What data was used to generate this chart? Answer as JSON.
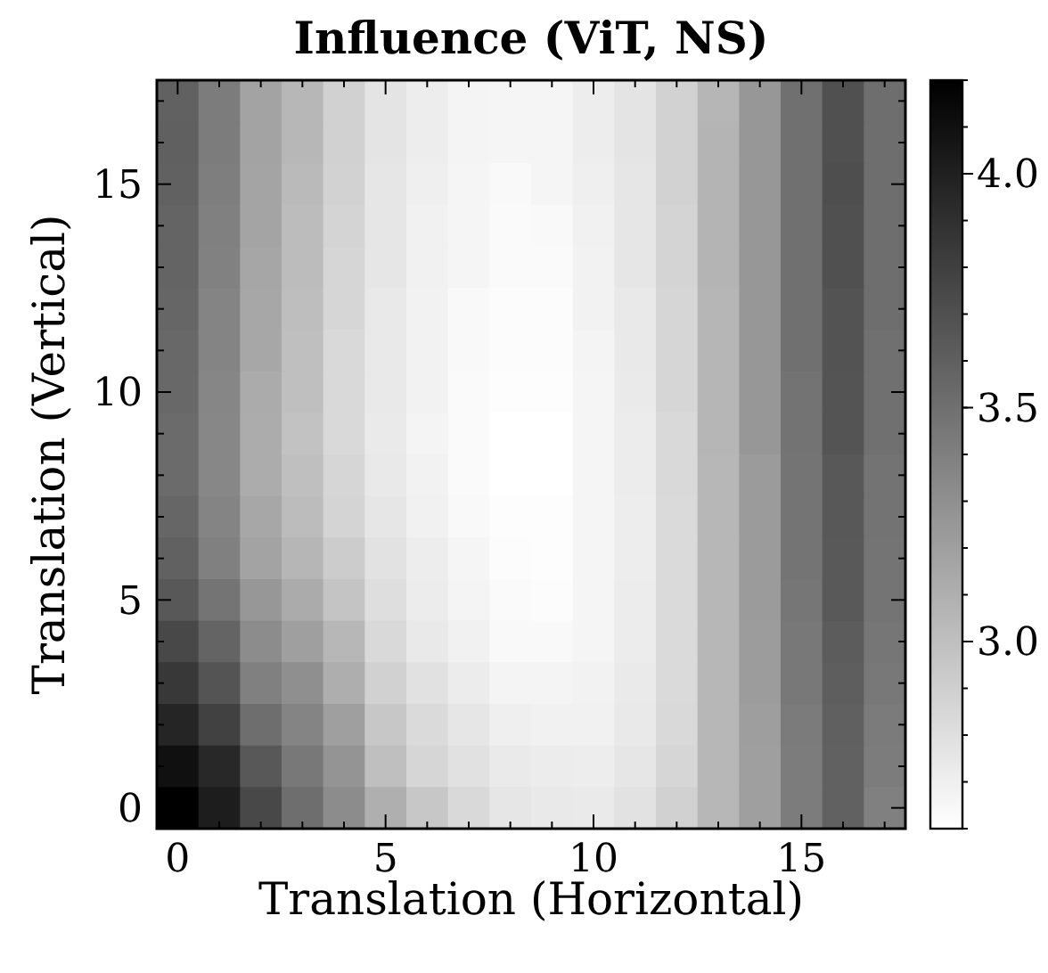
{
  "chart_data": {
    "type": "heatmap",
    "title": "Influence (ViT, NS)",
    "xlabel": "Translation (Horizontal)",
    "ylabel": "Translation (Vertical)",
    "categories": [
      "0",
      null,
      null,
      null,
      null,
      "5",
      null,
      null,
      null,
      null,
      "10",
      null,
      null,
      null,
      null,
      "15",
      null,
      null
    ],
    "y_categories": [
      null,
      null,
      "15",
      null,
      null,
      null,
      null,
      "10",
      null,
      null,
      null,
      null,
      "5",
      null,
      null,
      null,
      null,
      "0"
    ],
    "clim": [
      2.6,
      4.2
    ],
    "cticks": [
      {
        "value": 3,
        "label": "3.0"
      },
      3.5,
      {
        "value": 4,
        "label": "4.0"
      }
    ],
    "cells": [
      [
        3.59,
        3.42,
        3.18,
        3.05,
        2.89,
        2.77,
        2.71,
        2.67,
        2.66,
        2.66,
        2.71,
        2.77,
        2.88,
        3.06,
        3.25,
        3.5,
        3.7,
        3.51
      ],
      [
        3.6,
        3.42,
        3.18,
        3.05,
        2.89,
        2.77,
        2.71,
        2.67,
        2.66,
        2.66,
        2.71,
        2.77,
        2.88,
        3.07,
        3.25,
        3.5,
        3.7,
        3.51
      ],
      [
        3.59,
        3.41,
        3.17,
        3.03,
        2.88,
        2.76,
        2.7,
        2.66,
        2.64,
        2.66,
        2.7,
        2.76,
        2.88,
        3.07,
        3.25,
        3.5,
        3.71,
        3.51
      ],
      [
        3.57,
        3.4,
        3.17,
        3.02,
        2.87,
        2.76,
        2.69,
        2.66,
        2.63,
        2.64,
        2.69,
        2.76,
        2.87,
        3.07,
        3.25,
        3.5,
        3.7,
        3.51
      ],
      [
        3.57,
        3.39,
        3.16,
        3.02,
        2.86,
        2.76,
        2.69,
        2.66,
        2.63,
        2.63,
        2.68,
        2.76,
        2.87,
        3.07,
        3.25,
        3.5,
        3.7,
        3.51
      ],
      [
        3.56,
        3.37,
        3.15,
        3.01,
        2.86,
        2.74,
        2.68,
        2.64,
        2.62,
        2.62,
        2.68,
        2.74,
        2.86,
        3.06,
        3.25,
        3.5,
        3.68,
        3.51
      ],
      [
        3.55,
        3.37,
        3.15,
        3.0,
        2.84,
        2.74,
        2.68,
        2.64,
        2.62,
        2.62,
        2.67,
        2.74,
        2.86,
        3.06,
        3.25,
        3.5,
        3.68,
        3.5
      ],
      [
        3.55,
        3.36,
        3.13,
        3.0,
        2.84,
        2.74,
        2.68,
        2.63,
        2.61,
        2.61,
        2.66,
        2.73,
        2.86,
        3.06,
        3.25,
        3.48,
        3.67,
        3.5
      ],
      [
        3.53,
        3.35,
        3.12,
        2.98,
        2.84,
        2.73,
        2.67,
        2.63,
        2.6,
        2.6,
        2.66,
        2.72,
        2.84,
        3.06,
        3.25,
        3.48,
        3.67,
        3.5
      ],
      [
        3.53,
        3.35,
        3.12,
        3.0,
        2.86,
        2.74,
        2.68,
        2.63,
        2.6,
        2.6,
        2.66,
        2.72,
        2.84,
        3.05,
        3.23,
        3.47,
        3.65,
        3.48
      ],
      [
        3.56,
        3.37,
        3.15,
        3.02,
        2.87,
        2.76,
        2.69,
        2.64,
        2.61,
        2.61,
        2.66,
        2.71,
        2.83,
        3.05,
        3.23,
        3.47,
        3.65,
        3.48
      ],
      [
        3.59,
        3.4,
        3.18,
        3.06,
        2.92,
        2.78,
        2.71,
        2.66,
        2.62,
        2.61,
        2.66,
        2.71,
        2.83,
        3.05,
        3.23,
        3.47,
        3.64,
        3.47
      ],
      [
        3.65,
        3.47,
        3.25,
        3.13,
        2.97,
        2.81,
        2.72,
        2.67,
        2.63,
        2.62,
        2.66,
        2.72,
        2.83,
        3.05,
        3.23,
        3.46,
        3.64,
        3.47
      ],
      [
        3.75,
        3.57,
        3.32,
        3.2,
        3.05,
        2.84,
        2.74,
        2.69,
        2.64,
        2.64,
        2.66,
        2.72,
        2.83,
        3.05,
        3.22,
        3.45,
        3.62,
        3.46
      ],
      [
        3.85,
        3.67,
        3.4,
        3.3,
        3.11,
        2.89,
        2.79,
        2.72,
        2.67,
        2.67,
        2.68,
        2.73,
        2.83,
        3.05,
        3.22,
        3.45,
        3.61,
        3.45
      ],
      [
        3.97,
        3.79,
        3.51,
        3.37,
        3.2,
        2.95,
        2.83,
        2.76,
        2.7,
        2.69,
        2.69,
        2.74,
        2.84,
        3.05,
        3.21,
        3.43,
        3.6,
        3.43
      ],
      [
        4.1,
        3.95,
        3.65,
        3.45,
        3.27,
        3.0,
        2.86,
        2.79,
        2.73,
        2.72,
        2.71,
        2.76,
        2.86,
        3.05,
        3.2,
        3.42,
        3.59,
        3.42
      ],
      [
        4.2,
        4.02,
        3.75,
        3.51,
        3.32,
        3.1,
        2.95,
        2.84,
        2.76,
        2.74,
        2.73,
        2.78,
        2.89,
        3.05,
        3.2,
        3.42,
        3.59,
        3.4
      ]
    ]
  }
}
